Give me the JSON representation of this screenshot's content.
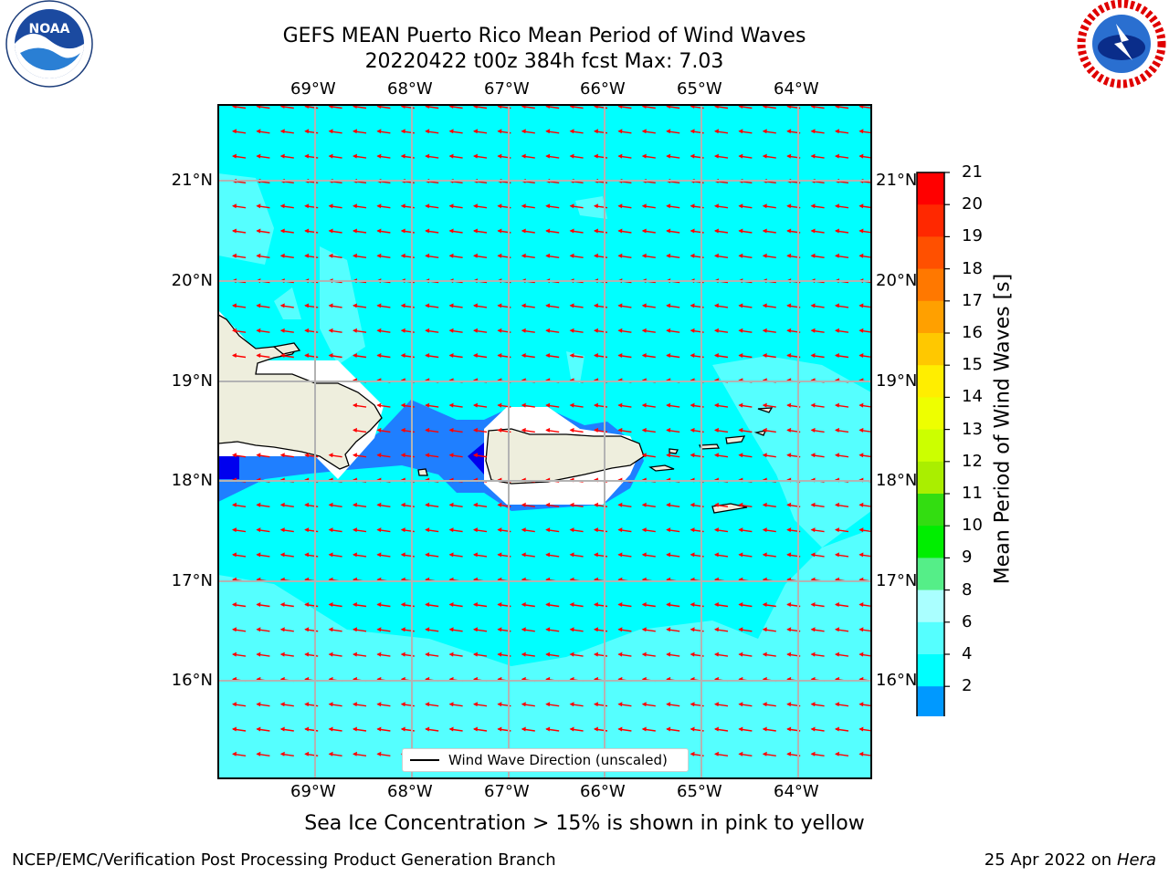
{
  "title_line1": "GEFS MEAN Puerto Rico Mean Period of Wind Waves",
  "title_line2": "20220422 t00z 384h fcst   Max: 7.03",
  "lon_labels": [
    "69°W",
    "68°W",
    "67°W",
    "66°W",
    "65°W",
    "64°W"
  ],
  "lat_labels": [
    "21°N",
    "20°N",
    "19°N",
    "18°N",
    "17°N",
    "16°N"
  ],
  "legend_label": "Wind Wave Direction (unscaled)",
  "colorbar": {
    "title": "Mean Period of Wind Waves [s]",
    "ticks": [
      "21",
      "20",
      "19",
      "18",
      "17",
      "16",
      "15",
      "14",
      "13",
      "12",
      "11",
      "10",
      "9",
      "8",
      "6",
      "4",
      "2"
    ],
    "colors": [
      "#ff0000",
      "#ff2800",
      "#ff5000",
      "#ff7800",
      "#ffa000",
      "#ffc800",
      "#ffee00",
      "#eeff00",
      "#ccff00",
      "#aaee00",
      "#33dd11",
      "#00ee00",
      "#55ee88",
      "#aaffff",
      "#55ffff",
      "#00ffff",
      "#0099ff",
      "#1f7fff",
      "#0000ee"
    ]
  },
  "map": {
    "ocean_color": "#00ffff",
    "light_color": "#55ffff",
    "mid_blue": "#1f7fff",
    "dark_blue": "#0000ee",
    "land_color": "#eeeedd",
    "arrow_color": "#ff0000"
  },
  "subcaption": "Sea Ice Concentration > 15% is shown in pink to yellow",
  "footer_left": "NCEP/EMC/Verification Post Processing Product Generation Branch",
  "footer_right_date": "25 Apr 2022 on ",
  "footer_right_machine": "Hera",
  "logo_left_text": "NOAA"
}
